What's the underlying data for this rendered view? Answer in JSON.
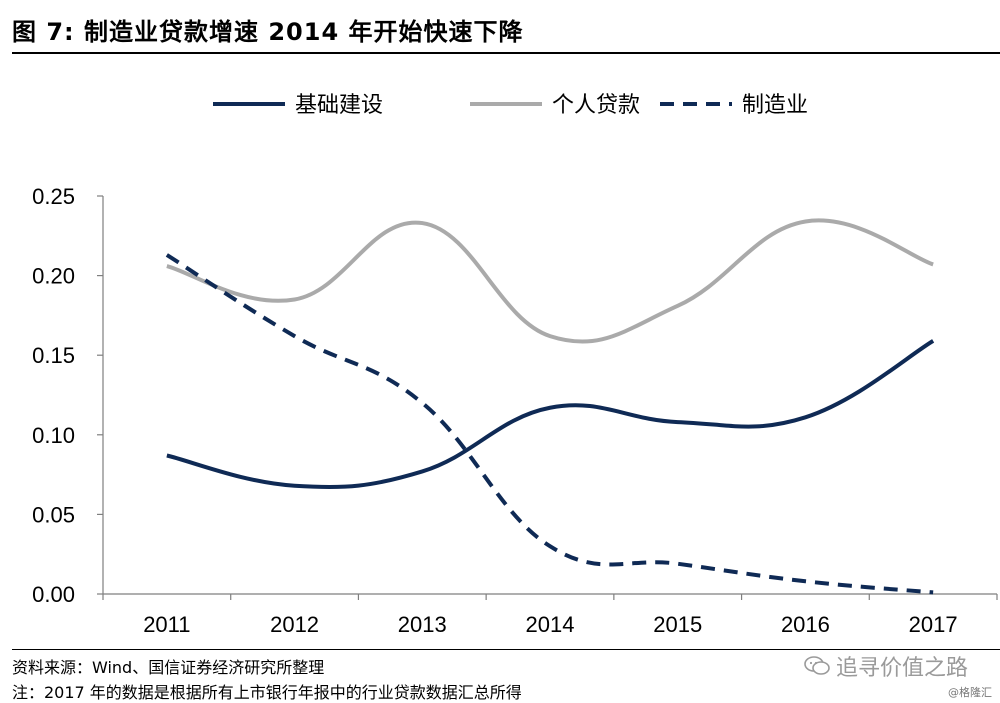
{
  "figure": {
    "title": "图 7: 制造业贷款增速 2014 年开始快速下降"
  },
  "chart_data": {
    "type": "line",
    "x": [
      "2011",
      "2012",
      "2013",
      "2014",
      "2015",
      "2016",
      "2017"
    ],
    "series": [
      {
        "name": "基础建设",
        "values": [
          0.087,
          0.068,
          0.077,
          0.117,
          0.108,
          0.111,
          0.159
        ],
        "color": "#0f2a55",
        "style": "solid"
      },
      {
        "name": "个人贷款",
        "values": [
          0.206,
          0.185,
          0.233,
          0.162,
          0.181,
          0.234,
          0.207
        ],
        "color": "#aaaaaa",
        "style": "solid"
      },
      {
        "name": "制造业",
        "values": [
          0.213,
          0.162,
          0.12,
          0.03,
          0.019,
          0.008,
          0.001
        ],
        "color": "#0f2a55",
        "style": "dashed"
      }
    ],
    "yticks": [
      "0.00",
      "0.05",
      "0.10",
      "0.15",
      "0.20",
      "0.25"
    ],
    "ylim": [
      0,
      0.25
    ],
    "grid": false,
    "legend_position": "top"
  },
  "footer": {
    "source": "资料来源：Wind、国信证券经济研究所整理",
    "note": "注：2017 年的数据是根据所有上市银行年报中的行业贷款数据汇总所得"
  },
  "watermark": {
    "text": "追寻价值之路",
    "icon": "wechat-icon",
    "credit": "@格隆汇"
  }
}
